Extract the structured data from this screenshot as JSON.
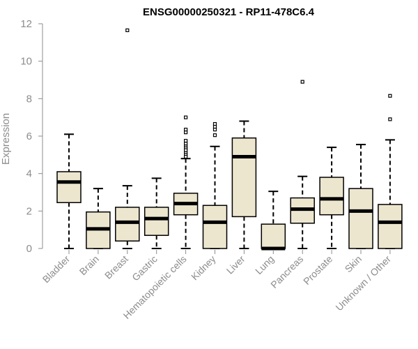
{
  "chart_data": {
    "type": "boxplot",
    "title": "ENSG00000250321 - RP11-478C6.4",
    "xlabel": "",
    "ylabel": "Expression",
    "ylim": [
      0,
      12
    ],
    "yticks": [
      0,
      2,
      4,
      6,
      8,
      10,
      12
    ],
    "box_fill": "#ede6cf",
    "box_stroke": "#000000",
    "categories": [
      "Bladder",
      "Brain",
      "Breast",
      "Gastric",
      "Hematopoietic cells",
      "Kidney",
      "Liver",
      "Lung",
      "Pancreas",
      "Prostate",
      "Skin",
      "Unknown / Other"
    ],
    "boxes": [
      {
        "name": "Bladder",
        "min": 0.0,
        "q1": 2.45,
        "median": 3.55,
        "q3": 4.1,
        "max": 6.1,
        "outliers": []
      },
      {
        "name": "Brain",
        "min": 0.0,
        "q1": 0.0,
        "median": 1.05,
        "q3": 1.95,
        "max": 3.2,
        "outliers": []
      },
      {
        "name": "Breast",
        "min": 0.0,
        "q1": 0.4,
        "median": 1.4,
        "q3": 2.2,
        "max": 3.35,
        "outliers": [
          11.65
        ]
      },
      {
        "name": "Gastric",
        "min": 0.0,
        "q1": 0.7,
        "median": 1.6,
        "q3": 2.2,
        "max": 3.75,
        "outliers": []
      },
      {
        "name": "Hematopoietic cells",
        "min": 0.0,
        "q1": 1.8,
        "median": 2.4,
        "q3": 2.95,
        "max": 4.8,
        "outliers": [
          7.0,
          6.35,
          6.2,
          5.75,
          5.6,
          5.45,
          5.35,
          5.25,
          5.1,
          5.0,
          4.9
        ]
      },
      {
        "name": "Kidney",
        "min": 0.0,
        "q1": 0.0,
        "median": 1.4,
        "q3": 2.3,
        "max": 5.45,
        "outliers": [
          6.65,
          6.5,
          6.35,
          6.05
        ]
      },
      {
        "name": "Liver",
        "min": 0.0,
        "q1": 1.7,
        "median": 4.9,
        "q3": 5.9,
        "max": 6.8,
        "outliers": []
      },
      {
        "name": "Lung",
        "min": 0.0,
        "q1": 0.0,
        "median": 0.0,
        "q3": 1.3,
        "max": 3.05,
        "outliers": []
      },
      {
        "name": "Pancreas",
        "min": 0.0,
        "q1": 1.35,
        "median": 2.1,
        "q3": 2.7,
        "max": 3.85,
        "outliers": [
          8.9
        ]
      },
      {
        "name": "Prostate",
        "min": 0.0,
        "q1": 1.8,
        "median": 2.65,
        "q3": 3.8,
        "max": 5.4,
        "outliers": []
      },
      {
        "name": "Skin",
        "min": 0.0,
        "q1": 0.0,
        "median": 2.0,
        "q3": 3.2,
        "max": 5.55,
        "outliers": []
      },
      {
        "name": "Unknown / Other",
        "min": 0.0,
        "q1": 0.0,
        "median": 1.4,
        "q3": 2.35,
        "max": 5.8,
        "outliers": [
          8.15,
          6.9
        ]
      }
    ]
  }
}
